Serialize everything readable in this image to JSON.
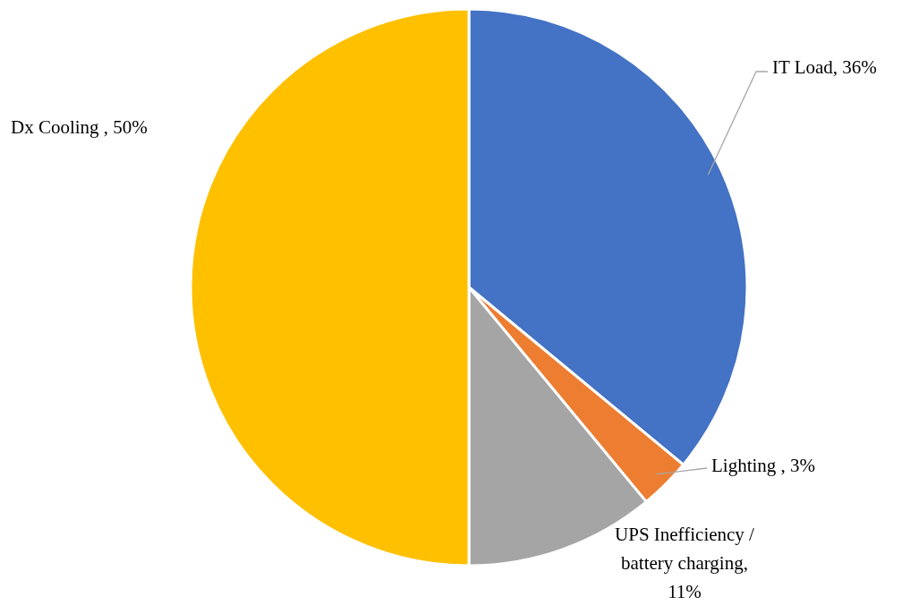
{
  "chart_data": {
    "type": "pie",
    "categories": [
      "IT Load",
      "Lighting ",
      "UPS Inefficiency / battery charging",
      "Dx Cooling "
    ],
    "values": [
      36,
      3,
      11,
      50
    ],
    "value_labels": [
      ", 36%",
      ", 3%",
      ", 11%",
      ", 50%"
    ],
    "colors": [
      "#4472c4",
      "#ed7d31",
      "#a5a5a5",
      "#ffc000"
    ],
    "legend": false
  }
}
